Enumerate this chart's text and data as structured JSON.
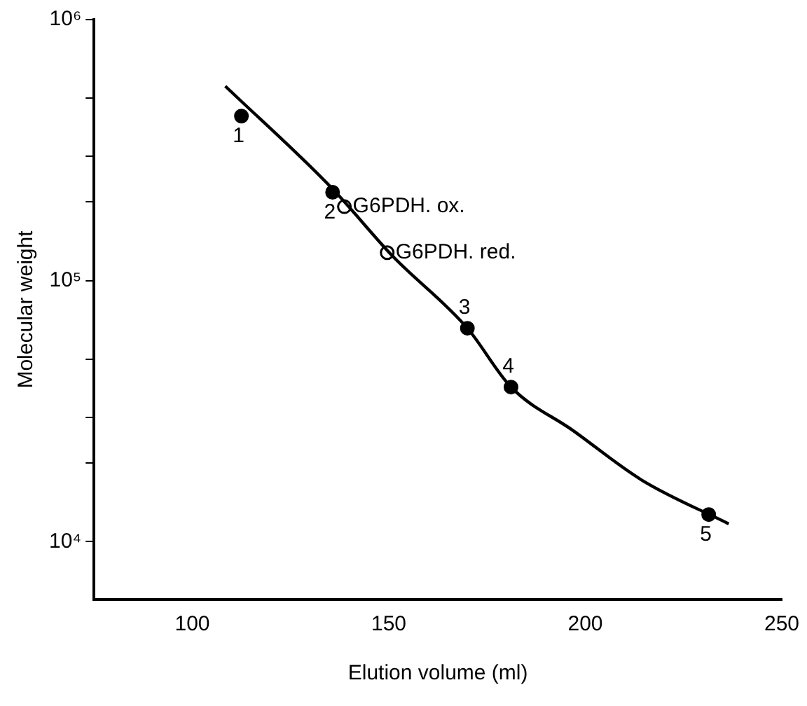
{
  "chart_data": {
    "type": "scatter",
    "xlabel": "Elution volume (ml)",
    "ylabel": "Molecular weight",
    "log": "y",
    "grid": false,
    "legend": false,
    "xlim": [
      75,
      250
    ],
    "xticks": [
      100,
      150,
      200,
      250
    ],
    "ylim": [
      6000,
      1000000
    ],
    "yticks": [
      {
        "value": 10000,
        "label": "10⁴"
      },
      {
        "value": 20000,
        "label": null
      },
      {
        "value": 30000,
        "label": null
      },
      {
        "value": 50000,
        "label": null
      },
      {
        "value": 100000,
        "label": "10⁵"
      },
      {
        "value": 200000,
        "label": null
      },
      {
        "value": 300000,
        "label": null
      },
      {
        "value": 500000,
        "label": null
      },
      {
        "value": 1000000,
        "label": "10⁶"
      }
    ],
    "series": [
      {
        "type": "line",
        "color": "#000000",
        "marker": "none",
        "line_style": "solid",
        "x": [
          108.4,
          135.4,
          151,
          170,
          181.1,
          196.8,
          214.4,
          236.5
        ],
        "values": [
          556000,
          227000,
          124000,
          65700,
          39100,
          26700,
          17200,
          11700
        ]
      },
      {
        "type": "scatter",
        "color": "#000000",
        "marker": "circle",
        "x": [
          112.5,
          135.7,
          170,
          181.1,
          231.4
        ],
        "values": [
          427000,
          218000,
          65700,
          39100,
          12700
        ]
      },
      {
        "type": "scatter",
        "color": "#ffffff",
        "marker": "circle",
        "x": [
          138.7,
          149.6
        ],
        "values": [
          192000,
          128000
        ]
      }
    ],
    "annotations": [
      {
        "text": "1",
        "x": 112.5,
        "y": 427000
      },
      {
        "text": "2",
        "x": 135.7,
        "y": 218000
      },
      {
        "text": "G6PDH. ox.",
        "x": 138.7,
        "y": 192000
      },
      {
        "text": "G6PDH. red.",
        "x": 149.6,
        "y": 128000
      },
      {
        "text": "3",
        "x": 170,
        "y": 65700
      },
      {
        "text": "4",
        "x": 181.1,
        "y": 39100
      },
      {
        "text": "5",
        "x": 231.4,
        "y": 12700
      }
    ]
  }
}
